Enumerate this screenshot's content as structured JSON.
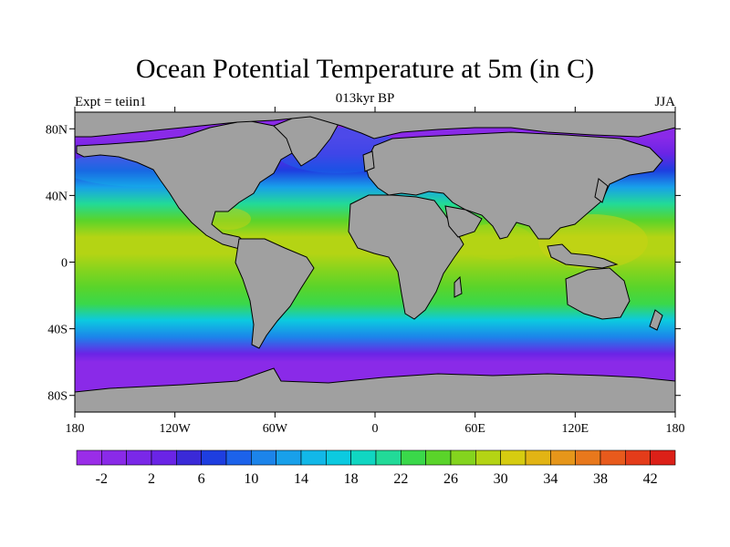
{
  "title": "Ocean Potential Temperature at 5m (in C)",
  "subtitle_left": "Expt = teiin1",
  "subtitle_center": "013kyr BP",
  "subtitle_right": "JJA",
  "map": {
    "lat_ticks": [
      "80N",
      "40N",
      "0",
      "40S",
      "80S"
    ],
    "lat_values": [
      80,
      40,
      0,
      -40,
      -80
    ],
    "lon_ticks": [
      "180",
      "120W",
      "60W",
      "0",
      "60E",
      "120E",
      "180"
    ],
    "lon_values": [
      -180,
      -120,
      -60,
      0,
      60,
      120,
      180
    ],
    "lat_range": [
      -90,
      90
    ],
    "lon_range": [
      -180,
      180
    ],
    "land_color": "#a0a0a0",
    "zonal_temperature_profile": [
      {
        "lat": -90,
        "temp": -2
      },
      {
        "lat": -70,
        "temp": -2
      },
      {
        "lat": -60,
        "temp": -1
      },
      {
        "lat": -55,
        "temp": 3
      },
      {
        "lat": -45,
        "temp": 10
      },
      {
        "lat": -35,
        "temp": 17
      },
      {
        "lat": -25,
        "temp": 22
      },
      {
        "lat": -15,
        "temp": 24
      },
      {
        "lat": -5,
        "temp": 26
      },
      {
        "lat": 5,
        "temp": 28
      },
      {
        "lat": 15,
        "temp": 28
      },
      {
        "lat": 25,
        "temp": 25
      },
      {
        "lat": 35,
        "temp": 20
      },
      {
        "lat": 45,
        "temp": 13
      },
      {
        "lat": 55,
        "temp": 7
      },
      {
        "lat": 65,
        "temp": 2
      },
      {
        "lat": 75,
        "temp": -1
      },
      {
        "lat": 90,
        "temp": -2
      }
    ]
  },
  "colorbar": {
    "levels": [
      -4,
      -2,
      0,
      2,
      4,
      6,
      8,
      10,
      12,
      14,
      16,
      18,
      20,
      22,
      24,
      26,
      28,
      30,
      32,
      34,
      36,
      38,
      40,
      42,
      44
    ],
    "labels": [
      "-2",
      "2",
      "6",
      "10",
      "14",
      "18",
      "22",
      "26",
      "30",
      "34",
      "38",
      "42"
    ],
    "label_values": [
      -2,
      2,
      6,
      10,
      14,
      18,
      22,
      26,
      30,
      34,
      38,
      42
    ],
    "colors": [
      "#9a2de8",
      "#8a2ae8",
      "#7a28e8",
      "#6a24e6",
      "#3a2ad8",
      "#1e3ee0",
      "#1c62ea",
      "#1c84ea",
      "#18a0ea",
      "#12b8e8",
      "#0ccae0",
      "#10d6c2",
      "#22da98",
      "#3ad84a",
      "#5ad42a",
      "#84d41e",
      "#b4d414",
      "#d6cc10",
      "#e2b414",
      "#e6961a",
      "#e8781c",
      "#e85a1c",
      "#e43c1a",
      "#dc2018"
    ]
  }
}
